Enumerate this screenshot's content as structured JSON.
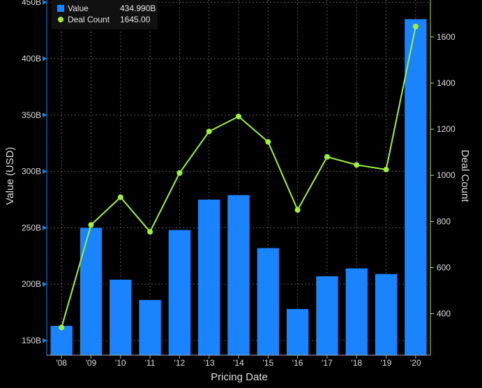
{
  "chart_data": {
    "type": "bar",
    "title": "",
    "xlabel": "Pricing Date",
    "categories": [
      "'08",
      "'09",
      "'10",
      "'11",
      "'12",
      "'13",
      "'14",
      "'15",
      "'16",
      "'17",
      "'18",
      "'19",
      "'20"
    ],
    "series": [
      {
        "name": "Value",
        "type": "bar",
        "axis": "left",
        "color": "#1a84ff",
        "values": [
          163,
          250,
          204,
          186,
          248,
          275,
          279,
          232,
          178,
          207,
          214,
          209,
          434.99
        ]
      },
      {
        "name": "Deal Count",
        "type": "line",
        "axis": "right",
        "color": "#9ef23b",
        "values": [
          340,
          785,
          905,
          755,
          1010,
          1190,
          1255,
          1145,
          850,
          1080,
          1045,
          1025,
          1645
        ]
      }
    ],
    "left_axis": {
      "label": "Value (USD)",
      "range": [
        137,
        452
      ],
      "ticks": [
        150,
        200,
        250,
        300,
        350,
        400,
        450
      ],
      "tick_labels": [
        "150B",
        "200B",
        "250B",
        "300B",
        "350B",
        "400B",
        "450B"
      ],
      "color": "#1a84ff"
    },
    "right_axis": {
      "label": "Deal Count",
      "range": [
        220,
        1760
      ],
      "ticks": [
        400,
        600,
        800,
        1000,
        1200,
        1400,
        1600
      ],
      "tick_labels": [
        "400",
        "600",
        "800",
        "1000",
        "1200",
        "1400",
        "1600"
      ],
      "color": "#9ef23b"
    },
    "grid": true,
    "legend_position": "top-left"
  },
  "legend": {
    "items": [
      {
        "name": "Value",
        "value": "434.990B"
      },
      {
        "name": "Deal Count",
        "value": "1645.00"
      }
    ]
  }
}
